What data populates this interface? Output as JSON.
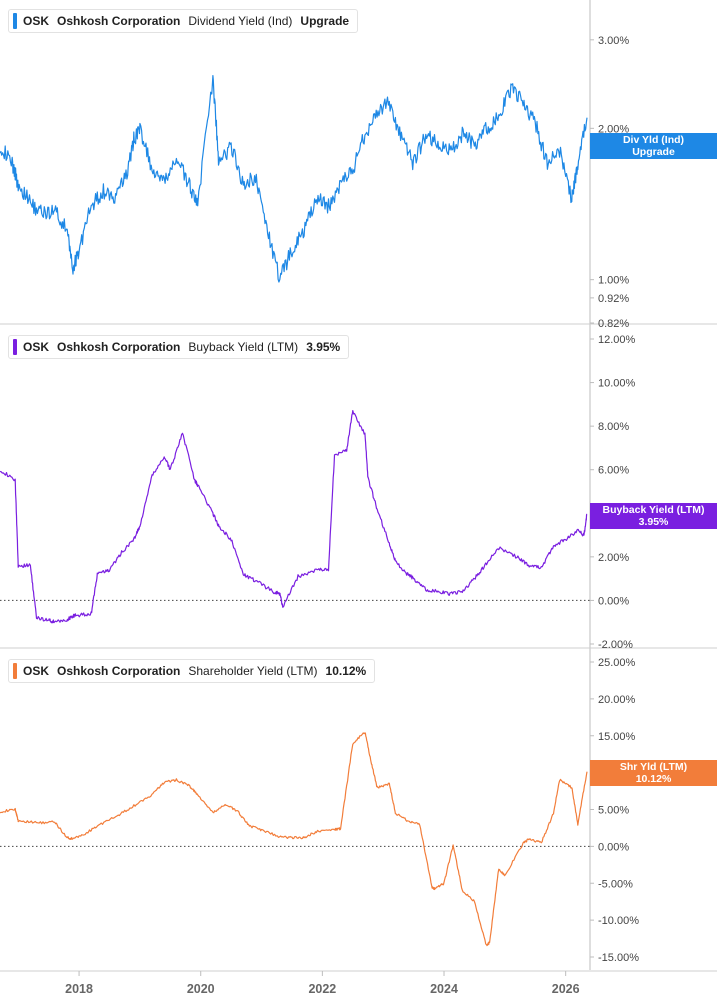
{
  "panels": [
    {
      "ticker": "OSK",
      "company": "Oshkosh Corporation",
      "metric": "Dividend Yield (Ind)",
      "value": "Upgrade",
      "color": "#1e88e5",
      "tag_line1": "Div Yld (Ind)",
      "tag_line2": "Upgrade"
    },
    {
      "ticker": "OSK",
      "company": "Oshkosh Corporation",
      "metric": "Buyback Yield (LTM)",
      "value": "3.95%",
      "color": "#7a1fe0",
      "tag_line1": "Buyback Yield (LTM)",
      "tag_line2": "3.95%"
    },
    {
      "ticker": "OSK",
      "company": "Oshkosh Corporation",
      "metric": "Shareholder Yield (LTM)",
      "value": "10.12%",
      "color": "#f27d3a",
      "tag_line1": "Shr Yld (LTM)",
      "tag_line2": "10.12%"
    }
  ],
  "chart_data": [
    {
      "type": "line",
      "series": [
        {
          "name": "Dividend Yield (Ind)"
        }
      ],
      "y_scale": "log",
      "ylim": [
        0.82,
        3.6
      ],
      "yticks": [
        0.82,
        0.92,
        1.0,
        2.0,
        3.0
      ],
      "ytick_labels": [
        "0.82%",
        "0.92%",
        "1.00%",
        "2.00%",
        "3.00%"
      ],
      "zero_line": false,
      "x": [
        2016.7,
        2016.9,
        2017.0,
        2017.2,
        2017.4,
        2017.6,
        2017.8,
        2017.9,
        2018.0,
        2018.2,
        2018.4,
        2018.6,
        2018.8,
        2018.9,
        2019.0,
        2019.2,
        2019.4,
        2019.6,
        2019.8,
        2019.95,
        2020.2,
        2020.3,
        2020.5,
        2020.7,
        2020.9,
        2021.1,
        2021.3,
        2021.5,
        2021.7,
        2021.9,
        2022.1,
        2022.3,
        2022.5,
        2022.7,
        2022.9,
        2023.1,
        2023.3,
        2023.5,
        2023.7,
        2023.9,
        2024.1,
        2024.3,
        2024.5,
        2024.7,
        2024.9,
        2025.1,
        2025.3,
        2025.5,
        2025.7,
        2025.9,
        2026.1,
        2026.2,
        2026.35
      ],
      "y": [
        1.85,
        1.7,
        1.55,
        1.42,
        1.35,
        1.38,
        1.25,
        1.05,
        1.15,
        1.4,
        1.5,
        1.45,
        1.65,
        1.9,
        2.0,
        1.65,
        1.55,
        1.75,
        1.55,
        1.42,
        2.5,
        1.7,
        1.85,
        1.55,
        1.6,
        1.25,
        1.0,
        1.15,
        1.25,
        1.45,
        1.4,
        1.55,
        1.65,
        1.95,
        2.15,
        2.25,
        1.9,
        1.7,
        1.95,
        1.85,
        1.8,
        1.95,
        1.85,
        2.0,
        2.1,
        2.4,
        2.25,
        2.05,
        1.7,
        1.8,
        1.45,
        1.7,
        2.1
      ]
    },
    {
      "type": "line",
      "series": [
        {
          "name": "Buyback Yield (LTM)"
        }
      ],
      "ylim": [
        -2.0,
        12.0
      ],
      "yticks": [
        -2,
        0,
        2,
        4,
        6,
        8,
        10,
        12
      ],
      "ytick_labels": [
        "-2.00%",
        "0.00%",
        "2.00%",
        "4.00%",
        "6.00%",
        "8.00%",
        "10.00%",
        "12.00%"
      ],
      "zero_line": true,
      "x": [
        2016.7,
        2016.95,
        2017.0,
        2017.2,
        2017.3,
        2017.5,
        2017.6,
        2017.8,
        2017.9,
        2017.95,
        2018.2,
        2018.3,
        2018.5,
        2018.7,
        2018.9,
        2019.0,
        2019.2,
        2019.4,
        2019.5,
        2019.7,
        2019.9,
        2019.95,
        2020.2,
        2020.3,
        2020.5,
        2020.7,
        2020.9,
        2021.2,
        2021.3,
        2021.35,
        2021.6,
        2021.9,
        2022.1,
        2022.2,
        2022.4,
        2022.5,
        2022.7,
        2022.75,
        2022.9,
        2023.1,
        2023.2,
        2023.4,
        2023.5,
        2023.7,
        2023.9,
        2024.1,
        2024.3,
        2024.5,
        2024.7,
        2024.9,
        2025.2,
        2025.4,
        2025.6,
        2025.8,
        2026.0,
        2026.2,
        2026.3,
        2026.35
      ],
      "y": [
        6.0,
        5.5,
        1.6,
        1.6,
        -0.8,
        -0.9,
        -1.0,
        -0.9,
        -0.7,
        -0.7,
        -0.6,
        1.2,
        1.4,
        2.2,
        2.8,
        3.4,
        5.7,
        6.6,
        6.0,
        7.7,
        5.5,
        5.3,
        4.0,
        3.4,
        2.8,
        1.2,
        0.9,
        0.4,
        0.3,
        -0.3,
        1.1,
        1.4,
        1.4,
        6.7,
        6.9,
        8.7,
        7.6,
        5.6,
        4.2,
        2.6,
        1.8,
        1.2,
        1.0,
        0.5,
        0.4,
        0.3,
        0.4,
        1.0,
        1.7,
        2.4,
        2.0,
        1.6,
        1.5,
        2.5,
        2.8,
        3.2,
        3.0,
        3.95
      ]
    },
    {
      "type": "line",
      "series": [
        {
          "name": "Shareholder Yield (LTM)"
        }
      ],
      "ylim": [
        -15.0,
        25.0
      ],
      "yticks": [
        -15,
        -10,
        -5,
        0,
        5,
        10,
        15,
        20,
        25
      ],
      "ytick_labels": [
        "-15.00%",
        "-10.00%",
        "-5.00%",
        "0.00%",
        "5.00%",
        "10.00%",
        "15.00%",
        "20.00%",
        "25.00%"
      ],
      "zero_line": true,
      "x": [
        2016.7,
        2016.95,
        2017.0,
        2017.3,
        2017.6,
        2017.8,
        2017.9,
        2018.1,
        2018.3,
        2018.6,
        2018.9,
        2019.2,
        2019.4,
        2019.6,
        2019.8,
        2019.95,
        2020.2,
        2020.4,
        2020.6,
        2020.8,
        2021.0,
        2021.3,
        2021.5,
        2021.7,
        2021.9,
        2022.2,
        2022.3,
        2022.5,
        2022.7,
        2022.8,
        2022.9,
        2023.1,
        2023.2,
        2023.4,
        2023.6,
        2023.8,
        2023.85,
        2024.0,
        2024.15,
        2024.3,
        2024.5,
        2024.7,
        2024.75,
        2024.9,
        2025.0,
        2025.3,
        2025.4,
        2025.6,
        2025.8,
        2025.9,
        2026.1,
        2026.2,
        2026.35
      ],
      "y": [
        4.7,
        5.0,
        3.5,
        3.2,
        3.3,
        1.2,
        1.0,
        1.7,
        2.8,
        4.0,
        5.5,
        7.0,
        8.7,
        9.0,
        8.3,
        7.0,
        4.5,
        5.7,
        4.8,
        2.8,
        2.2,
        1.3,
        1.2,
        1.2,
        2.0,
        2.3,
        2.4,
        14.0,
        15.5,
        11.5,
        8.0,
        8.5,
        4.5,
        3.5,
        3.0,
        -5.5,
        -5.8,
        -5.0,
        0.2,
        -6.0,
        -7.5,
        -13.5,
        -13.0,
        -3.0,
        -4.0,
        0.4,
        1.0,
        0.5,
        4.5,
        9.0,
        8.0,
        3.0,
        10.12
      ]
    }
  ],
  "xaxis": {
    "tick_values": [
      2018,
      2020,
      2022,
      2024,
      2026
    ],
    "tick_labels": [
      "2018",
      "2020",
      "2022",
      "2024",
      "2026"
    ],
    "range": [
      2016.7,
      2026.4
    ]
  }
}
